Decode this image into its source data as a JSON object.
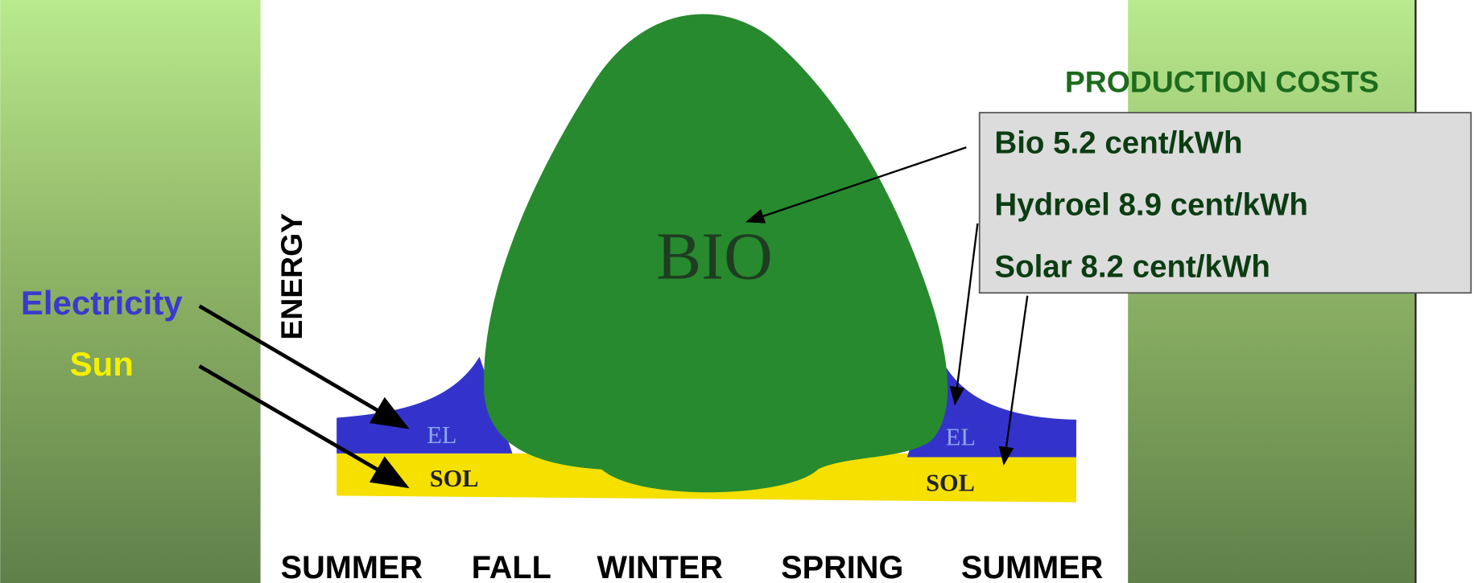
{
  "header": {
    "title": "PRODUCTION COSTS"
  },
  "costs": [
    "Bio 5.2 cent/kWh",
    "Hydroel  8.9 cent/kWh",
    "Solar 8.2 cent/kWh"
  ],
  "axis_label": "ENERGY",
  "regions": {
    "bio": "BIO",
    "el_left": "EL",
    "el_right": "EL",
    "sol_left": "SOL",
    "sol_right": "SOL"
  },
  "legend": {
    "electricity": "Electricity",
    "sun": "Sun"
  },
  "seasons": [
    "SUMMER",
    "FALL",
    "WINTER",
    "SPRING",
    "SUMMER"
  ]
}
